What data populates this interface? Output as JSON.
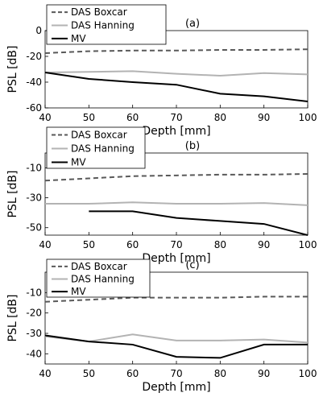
{
  "chart_data": [
    {
      "type": "line",
      "title": "(a)",
      "xlabel": "Depth [mm]",
      "ylabel": "PSL [dB]",
      "xlim": [
        40,
        100
      ],
      "ylim": [
        -60,
        0
      ],
      "xticks": [
        40,
        50,
        60,
        70,
        80,
        90,
        100
      ],
      "yticks": [
        0,
        -20,
        -40,
        -60
      ],
      "grid": false,
      "legend_position": "top-left",
      "series": [
        {
          "name": "DAS Boxcar",
          "color": "#595959",
          "style": "dashed",
          "x": [
            40,
            50,
            60,
            70,
            80,
            90,
            100
          ],
          "values": [
            -17.5,
            -16,
            -15.5,
            -15.5,
            -15,
            -15,
            -14.5
          ]
        },
        {
          "name": "DAS Hanning",
          "color": "#b3b3b3",
          "style": "solid",
          "x": [
            40,
            50,
            60,
            70,
            80,
            90,
            100
          ],
          "values": [
            -32.5,
            -32,
            -31.5,
            -33.5,
            -35,
            -33,
            -34
          ]
        },
        {
          "name": "MV",
          "color": "#000000",
          "style": "solid",
          "x": [
            40,
            50,
            60,
            70,
            80,
            90,
            100
          ],
          "values": [
            -32.5,
            -37.5,
            -40,
            -42,
            -49,
            -51,
            -55
          ]
        }
      ]
    },
    {
      "type": "line",
      "title": "(b)",
      "xlabel": "Depth [mm]",
      "ylabel": "PSL [dB]",
      "xlim": [
        40,
        100
      ],
      "ylim": [
        -55,
        0
      ],
      "xticks": [
        40,
        50,
        60,
        70,
        80,
        90,
        100
      ],
      "yticks": [
        -10,
        -30,
        -50
      ],
      "grid": false,
      "legend_position": "top-left",
      "series": [
        {
          "name": "DAS Boxcar",
          "color": "#595959",
          "style": "dashed",
          "x": [
            40,
            50,
            60,
            70,
            80,
            90,
            100
          ],
          "values": [
            -18.5,
            -17,
            -15.5,
            -15,
            -14.5,
            -14.5,
            -14
          ]
        },
        {
          "name": "DAS Hanning",
          "color": "#b3b3b3",
          "style": "solid",
          "x": [
            40,
            50,
            60,
            70,
            80,
            90,
            100
          ],
          "values": [
            -34,
            -34,
            -33,
            -34,
            -34,
            -33.5,
            -35
          ]
        },
        {
          "name": "MV",
          "color": "#000000",
          "style": "solid",
          "x": [
            50,
            60,
            70,
            80,
            90,
            100
          ],
          "values": [
            -39,
            -39,
            -43.5,
            -45.5,
            -47.5,
            -55
          ]
        }
      ]
    },
    {
      "type": "line",
      "title": "(c)",
      "xlabel": "Depth [mm]",
      "ylabel": "PSL [dB]",
      "xlim": [
        40,
        100
      ],
      "ylim": [
        -45,
        0
      ],
      "xticks": [
        40,
        50,
        60,
        70,
        80,
        90,
        100
      ],
      "yticks": [
        -10,
        -20,
        -30,
        -40
      ],
      "grid": false,
      "legend_position": "top-left",
      "series": [
        {
          "name": "DAS Boxcar",
          "color": "#595959",
          "style": "dashed",
          "x": [
            40,
            50,
            60,
            70,
            80,
            90,
            100
          ],
          "values": [
            -14.5,
            -13.5,
            -12.5,
            -12.5,
            -12.5,
            -12,
            -12
          ]
        },
        {
          "name": "DAS Hanning",
          "color": "#b3b3b3",
          "style": "solid",
          "x": [
            40,
            50,
            60,
            70,
            80,
            90,
            100
          ],
          "values": [
            -31.5,
            -34,
            -30.5,
            -33.5,
            -33.5,
            -33,
            -34.5
          ]
        },
        {
          "name": "MV",
          "color": "#000000",
          "style": "solid",
          "x": [
            40,
            50,
            60,
            70,
            80,
            90,
            100
          ],
          "values": [
            -31,
            -34,
            -35.5,
            -41.5,
            -42,
            -35.5,
            -35.5
          ]
        }
      ]
    }
  ]
}
